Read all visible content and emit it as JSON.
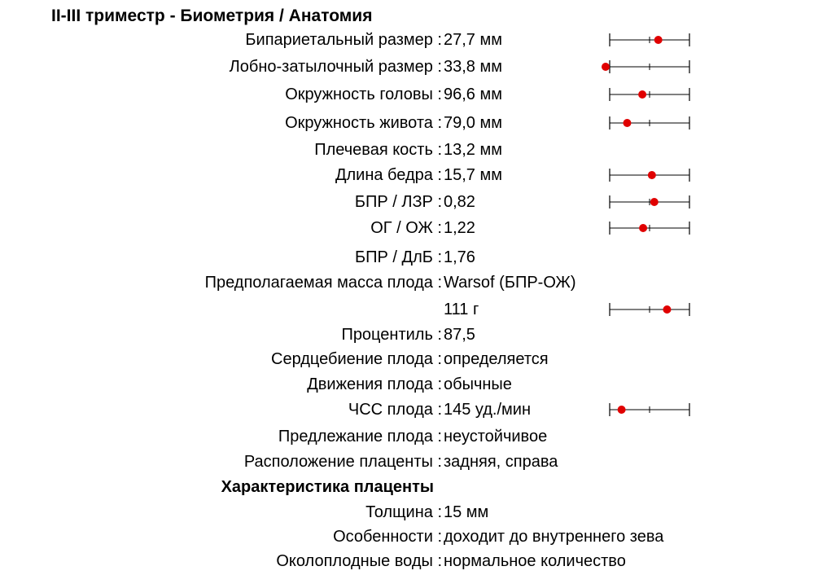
{
  "title": "II-III триместр - Биометрия / Анатомия",
  "colors": {
    "marker": "#e00000",
    "line": "#000000"
  },
  "rows": [
    {
      "label": "Бипариетальный размер :",
      "value": "27,7  мм",
      "gauge": 0.66
    },
    {
      "label": "Лобно-затылочный размер :",
      "value": "33,8  мм",
      "gauge": 0.0
    },
    {
      "label": "Окружность головы :",
      "value": "96,6  мм",
      "gauge": 0.46
    },
    {
      "label": "Окружность живота :",
      "value": "79,0  мм",
      "gauge": 0.27
    },
    {
      "label": "Плечевая кость :",
      "value": " 13,2  мм",
      "gauge": null
    },
    {
      "label": "Длина бедра :",
      "value": "15,7  мм",
      "gauge": 0.58
    },
    {
      "label": "БПР / ЛЗР :",
      "value": "0,82",
      "gauge": 0.61
    },
    {
      "label": "ОГ / ОЖ :",
      "value": "1,22",
      "gauge": 0.47
    },
    {
      "label": "БПР / ДлБ :",
      "value": "1,76",
      "gauge": null
    },
    {
      "label": "Предполагаемая масса плода :",
      "value": "Warsof  (БПР-ОЖ)",
      "gauge": null
    },
    {
      "label": "",
      "value": "111  г",
      "gauge": 0.77
    },
    {
      "label": "Процентиль :",
      "value": "87,5",
      "gauge": null
    },
    {
      "label": "Сердцебиение плода :",
      "value": "определяется",
      "gauge": null
    },
    {
      "label": "Движения плода :",
      "value": "обычные",
      "gauge": null
    },
    {
      "label": "ЧСС плода :",
      "value": "145  уд./мин",
      "gauge": 0.2
    },
    {
      "label": "Предлежание плода :",
      "value": "неустойчивое",
      "gauge": null
    },
    {
      "label": "Расположение плаценты :",
      "value": "задняя, справа",
      "gauge": null
    },
    {
      "label": "Характеристика плаценты",
      "value": "",
      "gauge": null,
      "bold": true
    },
    {
      "label": "Толщина :",
      "value": " 15  мм",
      "gauge": null
    },
    {
      "label": "Особенности :",
      "value": "доходит до внутреннего зева",
      "gauge": null
    },
    {
      "label": "Околоплодные воды :",
      "value": "нормальное количество",
      "gauge": null
    }
  ]
}
